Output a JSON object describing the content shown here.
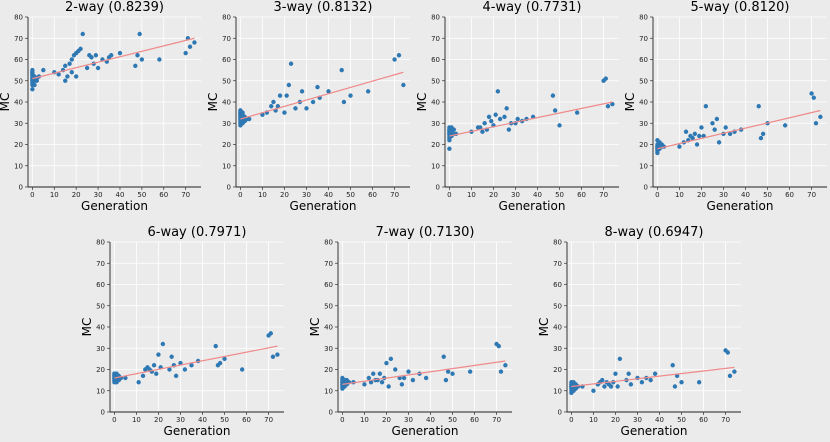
{
  "chart_data": [
    {
      "type": "scatter",
      "title": "2-way (0.8239)",
      "xlabel": "Generation",
      "ylabel": "MC",
      "xlim": [
        -2,
        77
      ],
      "ylim": [
        0,
        80
      ],
      "xticks": [
        "0",
        "10",
        "20",
        "30",
        "40",
        "50",
        "60",
        "70"
      ],
      "yticks": [
        "0",
        "10",
        "20",
        "30",
        "40",
        "50",
        "60",
        "70",
        "80"
      ],
      "x": [
        0,
        0,
        0,
        0,
        0,
        0,
        0,
        0,
        0,
        0,
        0,
        0,
        0,
        1,
        1,
        1,
        2,
        2,
        3,
        5,
        10,
        12,
        14,
        15,
        15,
        16,
        17,
        18,
        18,
        19,
        20,
        20,
        21,
        22,
        23,
        25,
        26,
        27,
        28,
        29,
        30,
        32,
        34,
        35,
        36,
        40,
        47,
        48,
        49,
        50,
        58,
        70,
        71,
        72,
        74
      ],
      "y": [
        46,
        48,
        49,
        50,
        50,
        51,
        51,
        52,
        53,
        53,
        54,
        54,
        55,
        48,
        50,
        52,
        50,
        51,
        52,
        55,
        54,
        53,
        55,
        50,
        57,
        52,
        58,
        60,
        54,
        62,
        52,
        63,
        64,
        65,
        72,
        56,
        62,
        61,
        58,
        62,
        56,
        60,
        59,
        61,
        62,
        63,
        57,
        62,
        72,
        60,
        60,
        63,
        70,
        66,
        68
      ],
      "fit": [
        51,
        70
      ],
      "grid": true,
      "colors": {
        "points": "#2e78b3",
        "fit_line": "#f08a8a",
        "grid": "#ffffff",
        "background": "#ebebeb"
      }
    },
    {
      "type": "scatter",
      "title": "3-way (0.8132)",
      "xlabel": "Generation",
      "ylabel": "MC",
      "xlim": [
        -2,
        77
      ],
      "ylim": [
        0,
        80
      ],
      "xticks": [
        "0",
        "10",
        "20",
        "30",
        "40",
        "50",
        "60",
        "70"
      ],
      "yticks": [
        "0",
        "10",
        "20",
        "30",
        "40",
        "50",
        "60",
        "70",
        "80"
      ],
      "x": [
        0,
        0,
        0,
        0,
        0,
        0,
        0,
        0,
        0,
        0,
        0,
        0,
        1,
        1,
        1,
        1,
        2,
        2,
        3,
        4,
        10,
        12,
        14,
        15,
        16,
        17,
        18,
        20,
        21,
        22,
        23,
        25,
        27,
        28,
        30,
        33,
        35,
        36,
        40,
        46,
        47,
        50,
        58,
        70,
        72,
        74
      ],
      "y": [
        29,
        30,
        31,
        32,
        33,
        33,
        34,
        34,
        35,
        35,
        36,
        36,
        30,
        32,
        34,
        35,
        31,
        33,
        32,
        32,
        34,
        35,
        38,
        40,
        36,
        38,
        43,
        35,
        43,
        48,
        58,
        37,
        40,
        45,
        37,
        40,
        47,
        42,
        45,
        55,
        40,
        43,
        45,
        60,
        62,
        48
      ],
      "fit": [
        32,
        54
      ],
      "grid": true,
      "colors": {
        "points": "#2e78b3",
        "fit_line": "#f08a8a",
        "grid": "#ffffff",
        "background": "#ebebeb"
      }
    },
    {
      "type": "scatter",
      "title": "4-way (0.7731)",
      "xlabel": "Generation",
      "ylabel": "MC",
      "xlim": [
        -2,
        77
      ],
      "ylim": [
        0,
        80
      ],
      "xticks": [
        "0",
        "10",
        "20",
        "30",
        "40",
        "50",
        "60",
        "70"
      ],
      "yticks": [
        "0",
        "10",
        "20",
        "30",
        "40",
        "50",
        "60",
        "70",
        "80"
      ],
      "x": [
        0,
        0,
        0,
        0,
        0,
        0,
        0,
        0,
        0,
        0,
        0,
        1,
        1,
        1,
        2,
        2,
        3,
        10,
        13,
        14,
        15,
        16,
        17,
        18,
        19,
        20,
        21,
        22,
        23,
        25,
        26,
        27,
        28,
        30,
        31,
        33,
        35,
        38,
        47,
        48,
        50,
        58,
        70,
        71,
        72,
        74
      ],
      "y": [
        18,
        22,
        23,
        24,
        25,
        25,
        26,
        26,
        27,
        27,
        28,
        24,
        26,
        28,
        25,
        27,
        25,
        26,
        28,
        28,
        26,
        30,
        27,
        33,
        31,
        29,
        34,
        45,
        32,
        33,
        37,
        27,
        30,
        30,
        32,
        31,
        32,
        33,
        43,
        36,
        29,
        35,
        50,
        51,
        38,
        39
      ],
      "fit": [
        24,
        40
      ],
      "grid": true,
      "colors": {
        "points": "#2e78b3",
        "fit_line": "#f08a8a",
        "grid": "#ffffff",
        "background": "#ebebeb"
      }
    },
    {
      "type": "scatter",
      "title": "5-way (0.8120)",
      "xlabel": "Generation",
      "ylabel": "MC",
      "xlim": [
        -2,
        77
      ],
      "ylim": [
        0,
        80
      ],
      "xticks": [
        "0",
        "10",
        "20",
        "30",
        "40",
        "50",
        "60",
        "70"
      ],
      "yticks": [
        "0",
        "10",
        "20",
        "30",
        "40",
        "50",
        "60",
        "70",
        "80"
      ],
      "x": [
        0,
        0,
        0,
        0,
        0,
        0,
        0,
        0,
        1,
        1,
        1,
        2,
        2,
        3,
        10,
        12,
        13,
        14,
        15,
        16,
        17,
        18,
        19,
        20,
        21,
        22,
        25,
        26,
        27,
        28,
        30,
        31,
        33,
        35,
        38,
        46,
        47,
        48,
        50,
        58,
        70,
        71,
        72,
        74
      ],
      "y": [
        16,
        17,
        18,
        18,
        19,
        19,
        20,
        22,
        18,
        20,
        21,
        19,
        20,
        19,
        19,
        21,
        26,
        22,
        24,
        23,
        25,
        20,
        24,
        28,
        24,
        38,
        30,
        27,
        32,
        21,
        25,
        28,
        25,
        26,
        27,
        38,
        23,
        25,
        30,
        29,
        44,
        42,
        30,
        33
      ],
      "fit": [
        18,
        36
      ],
      "grid": true,
      "colors": {
        "points": "#2e78b3",
        "fit_line": "#f08a8a",
        "grid": "#ffffff",
        "background": "#ebebeb"
      }
    },
    {
      "type": "scatter",
      "title": "6-way (0.7971)",
      "xlabel": "Generation",
      "ylabel": "MC",
      "xlim": [
        -2,
        77
      ],
      "ylim": [
        0,
        80
      ],
      "xticks": [
        "0",
        "10",
        "20",
        "30",
        "40",
        "50",
        "60",
        "70"
      ],
      "yticks": [
        "0",
        "10",
        "20",
        "30",
        "40",
        "50",
        "60",
        "70",
        "80"
      ],
      "x": [
        0,
        0,
        0,
        0,
        0,
        0,
        0,
        0,
        0,
        1,
        1,
        1,
        2,
        2,
        3,
        5,
        11,
        13,
        14,
        15,
        16,
        17,
        18,
        19,
        20,
        21,
        22,
        25,
        26,
        27,
        28,
        30,
        32,
        35,
        38,
        46,
        47,
        48,
        50,
        58,
        70,
        71,
        72,
        74
      ],
      "y": [
        14,
        15,
        15,
        16,
        16,
        17,
        17,
        18,
        18,
        14,
        16,
        18,
        15,
        17,
        16,
        16,
        14,
        17,
        20,
        21,
        20,
        19,
        22,
        18,
        27,
        21,
        32,
        20,
        26,
        22,
        17,
        23,
        20,
        22,
        24,
        31,
        22,
        23,
        25,
        20,
        36,
        37,
        26,
        27
      ],
      "fit": [
        16,
        31
      ],
      "grid": true,
      "colors": {
        "points": "#2e78b3",
        "fit_line": "#f08a8a",
        "grid": "#ffffff",
        "background": "#ebebeb"
      }
    },
    {
      "type": "scatter",
      "title": "7-way (0.7130)",
      "xlabel": "Generation",
      "ylabel": "MC",
      "xlim": [
        -2,
        77
      ],
      "ylim": [
        0,
        80
      ],
      "xticks": [
        "0",
        "10",
        "20",
        "30",
        "40",
        "50",
        "60",
        "70"
      ],
      "yticks": [
        "0",
        "10",
        "20",
        "30",
        "40",
        "50",
        "60",
        "70",
        "80"
      ],
      "x": [
        0,
        0,
        0,
        0,
        0,
        0,
        0,
        0,
        1,
        1,
        1,
        2,
        2,
        3,
        5,
        10,
        12,
        13,
        14,
        15,
        16,
        17,
        18,
        19,
        20,
        21,
        22,
        24,
        26,
        27,
        28,
        30,
        32,
        35,
        38,
        46,
        47,
        48,
        50,
        58,
        70,
        71,
        72,
        74
      ],
      "y": [
        11,
        12,
        13,
        13,
        14,
        14,
        15,
        16,
        12,
        14,
        15,
        13,
        15,
        14,
        14,
        13,
        16,
        14,
        18,
        15,
        15,
        18,
        14,
        16,
        23,
        12,
        25,
        20,
        16,
        13,
        16,
        19,
        15,
        18,
        16,
        26,
        15,
        19,
        18,
        19,
        32,
        31,
        19,
        22
      ],
      "fit": [
        13,
        24
      ],
      "grid": true,
      "colors": {
        "points": "#2e78b3",
        "fit_line": "#f08a8a",
        "grid": "#ffffff",
        "background": "#ebebeb"
      }
    },
    {
      "type": "scatter",
      "title": "8-way (0.6947)",
      "xlabel": "Generation",
      "ylabel": "MC",
      "xlim": [
        -2,
        77
      ],
      "ylim": [
        0,
        80
      ],
      "xticks": [
        "0",
        "10",
        "20",
        "30",
        "40",
        "50",
        "60",
        "70"
      ],
      "yticks": [
        "0",
        "10",
        "20",
        "30",
        "40",
        "50",
        "60",
        "70",
        "80"
      ],
      "x": [
        0,
        0,
        0,
        0,
        0,
        0,
        0,
        0,
        1,
        1,
        1,
        2,
        2,
        3,
        5,
        10,
        12,
        13,
        14,
        15,
        16,
        17,
        18,
        19,
        20,
        21,
        22,
        25,
        26,
        27,
        30,
        32,
        34,
        36,
        38,
        46,
        47,
        48,
        50,
        58,
        70,
        71,
        72,
        74
      ],
      "y": [
        9,
        10,
        11,
        12,
        12,
        13,
        13,
        14,
        10,
        12,
        14,
        11,
        13,
        12,
        12,
        10,
        13,
        14,
        15,
        12,
        14,
        13,
        12,
        14,
        18,
        12,
        25,
        15,
        18,
        13,
        16,
        14,
        16,
        15,
        18,
        22,
        12,
        17,
        14,
        14,
        29,
        28,
        17,
        19
      ],
      "fit": [
        12,
        21
      ],
      "grid": true,
      "colors": {
        "points": "#2e78b3",
        "fit_line": "#f08a8a",
        "grid": "#ffffff",
        "background": "#ebebeb"
      }
    }
  ]
}
